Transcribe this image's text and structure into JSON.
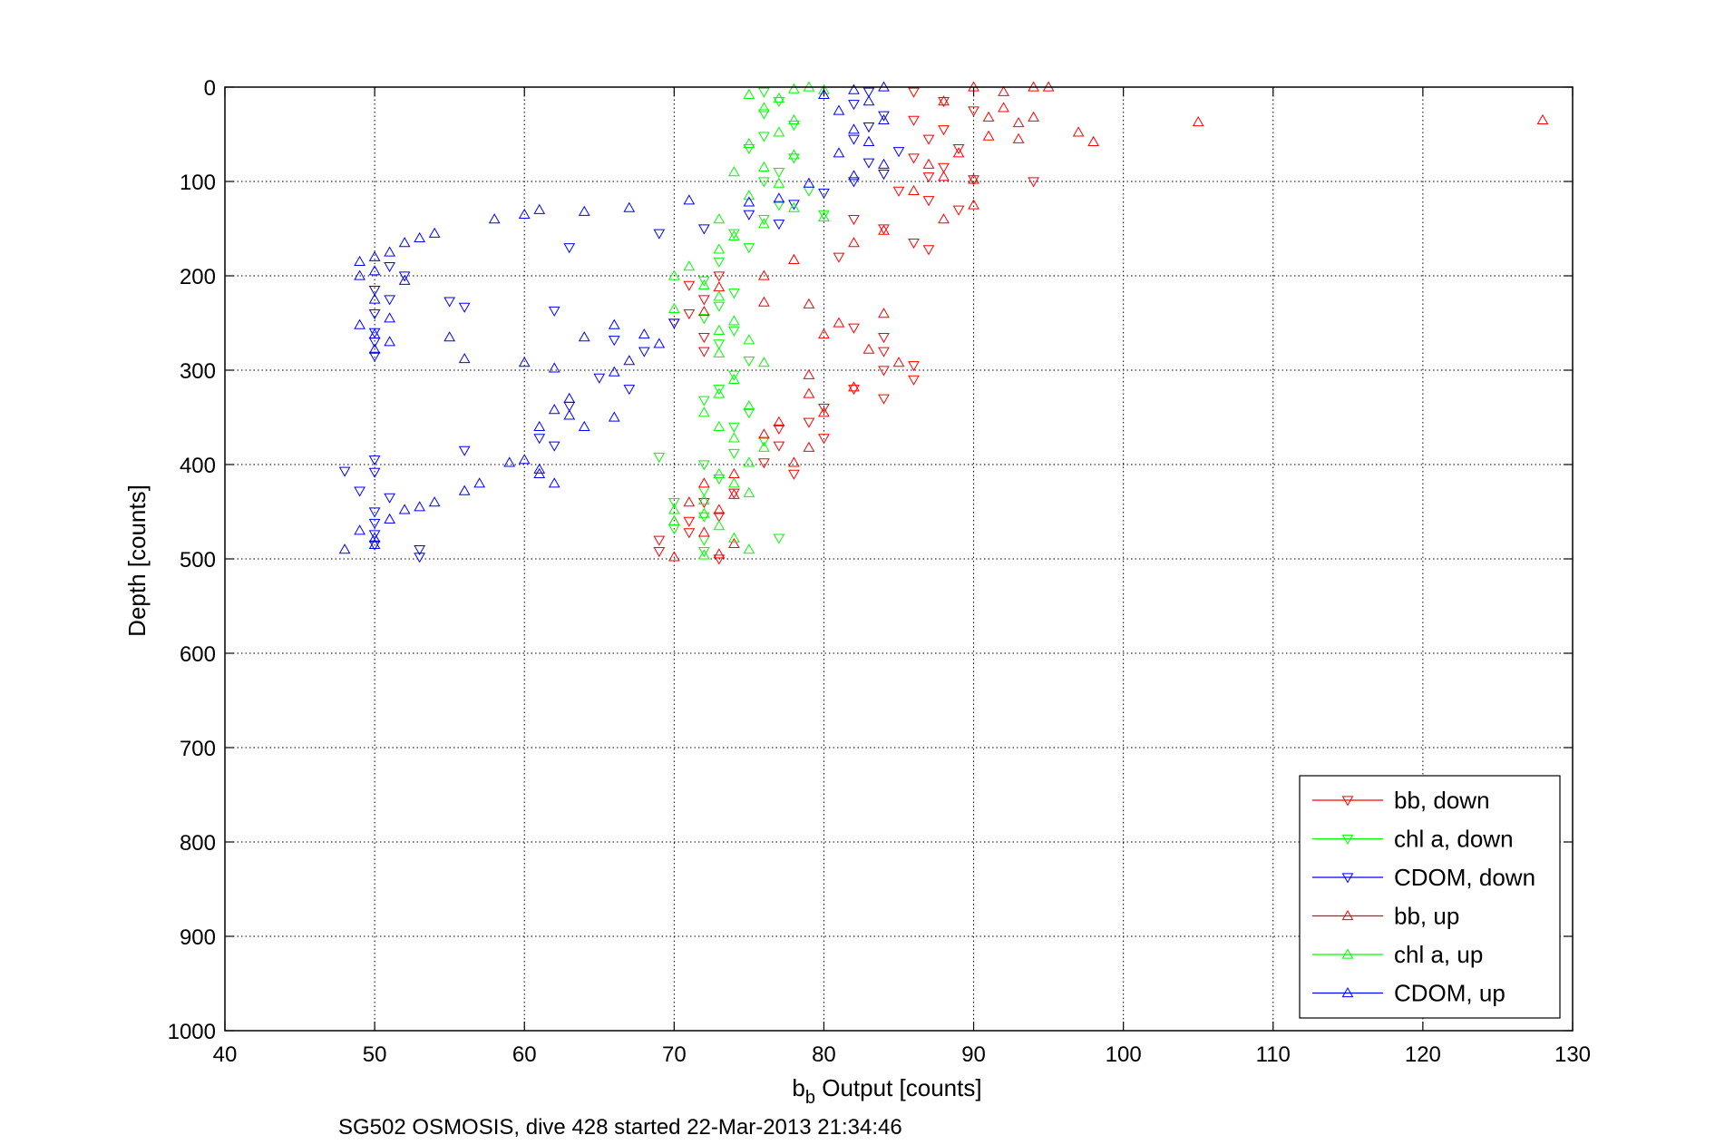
{
  "chart_data": {
    "type": "scatter",
    "xlabel_main": "b",
    "xlabel_sub": "b",
    "xlabel_rest": " Output [counts]",
    "ylabel": "Depth [counts]",
    "caption": "SG502 OSMOSIS, dive 428 started 22-Mar-2013 21:34:46",
    "xlim": [
      40,
      130
    ],
    "ylim": [
      0,
      1000
    ],
    "y_reversed": true,
    "grid": true,
    "legend_position": "bottom-right",
    "x_ticks": [
      "40",
      "50",
      "60",
      "70",
      "80",
      "90",
      "100",
      "110",
      "120",
      "130"
    ],
    "y_ticks": [
      "0",
      "100",
      "200",
      "300",
      "400",
      "500",
      "600",
      "700",
      "800",
      "900",
      "1000"
    ],
    "series": [
      {
        "name": "bb, down",
        "color": "#ff0000",
        "marker": "triangle-down",
        "points": [
          [
            86,
            5
          ],
          [
            88,
            15
          ],
          [
            90,
            25
          ],
          [
            86,
            35
          ],
          [
            88,
            45
          ],
          [
            87,
            55
          ],
          [
            89,
            65
          ],
          [
            86,
            75
          ],
          [
            88,
            85
          ],
          [
            87,
            95
          ],
          [
            90,
            98
          ],
          [
            94,
            100
          ],
          [
            85,
            110
          ],
          [
            87,
            120
          ],
          [
            89,
            130
          ],
          [
            82,
            140
          ],
          [
            84,
            150
          ],
          [
            86,
            165
          ],
          [
            87,
            172
          ],
          [
            81,
            180
          ],
          [
            73,
            200
          ],
          [
            71,
            210
          ],
          [
            72,
            225
          ],
          [
            71,
            240
          ],
          [
            70,
            250
          ],
          [
            72,
            265
          ],
          [
            72,
            280
          ],
          [
            82,
            255
          ],
          [
            84,
            265
          ],
          [
            84,
            280
          ],
          [
            86,
            295
          ],
          [
            84,
            300
          ],
          [
            86,
            310
          ],
          [
            82,
            320
          ],
          [
            84,
            330
          ],
          [
            80,
            340
          ],
          [
            79,
            355
          ],
          [
            77,
            362
          ],
          [
            80,
            372
          ],
          [
            77,
            380
          ],
          [
            76,
            398
          ],
          [
            78,
            410
          ],
          [
            74,
            430
          ],
          [
            72,
            440
          ],
          [
            73,
            455
          ],
          [
            71,
            460
          ],
          [
            71,
            472
          ],
          [
            69,
            480
          ],
          [
            69,
            492
          ],
          [
            73,
            500
          ]
        ]
      },
      {
        "name": "chl a, down",
        "color": "#00ff00",
        "marker": "triangle-down",
        "points": [
          [
            76,
            5
          ],
          [
            77,
            15
          ],
          [
            76,
            28
          ],
          [
            78,
            40
          ],
          [
            76,
            52
          ],
          [
            75,
            65
          ],
          [
            78,
            75
          ],
          [
            77,
            90
          ],
          [
            76,
            100
          ],
          [
            79,
            110
          ],
          [
            77,
            125
          ],
          [
            80,
            135
          ],
          [
            76,
            140
          ],
          [
            74,
            155
          ],
          [
            75,
            170
          ],
          [
            73,
            185
          ],
          [
            72,
            205
          ],
          [
            74,
            218
          ],
          [
            73,
            232
          ],
          [
            72,
            245
          ],
          [
            74,
            258
          ],
          [
            73,
            272
          ],
          [
            75,
            290
          ],
          [
            74,
            305
          ],
          [
            73,
            320
          ],
          [
            72,
            332
          ],
          [
            75,
            345
          ],
          [
            74,
            360
          ],
          [
            76,
            375
          ],
          [
            74,
            388
          ],
          [
            72,
            400
          ],
          [
            69,
            392
          ],
          [
            73,
            415
          ],
          [
            72,
            428
          ],
          [
            70,
            440
          ],
          [
            72,
            455
          ],
          [
            70,
            468
          ],
          [
            72,
            480
          ],
          [
            72,
            492
          ],
          [
            77,
            478
          ]
        ]
      },
      {
        "name": "CDOM, down",
        "color": "#0000ff",
        "marker": "triangle-down",
        "points": [
          [
            83,
            5
          ],
          [
            82,
            18
          ],
          [
            84,
            30
          ],
          [
            83,
            42
          ],
          [
            82,
            55
          ],
          [
            85,
            68
          ],
          [
            83,
            80
          ],
          [
            84,
            92
          ],
          [
            82,
            100
          ],
          [
            80,
            112
          ],
          [
            78,
            124
          ],
          [
            75,
            135
          ],
          [
            77,
            145
          ],
          [
            72,
            150
          ],
          [
            69,
            155
          ],
          [
            63,
            170
          ],
          [
            62,
            237
          ],
          [
            55,
            227
          ],
          [
            56,
            233
          ],
          [
            51,
            190
          ],
          [
            52,
            200
          ],
          [
            50,
            215
          ],
          [
            51,
            225
          ],
          [
            50,
            240
          ],
          [
            50,
            260
          ],
          [
            50,
            270
          ],
          [
            50,
            285
          ],
          [
            68,
            280
          ],
          [
            66,
            268
          ],
          [
            70,
            250
          ],
          [
            65,
            308
          ],
          [
            67,
            320
          ],
          [
            63,
            338
          ],
          [
            61,
            372
          ],
          [
            62,
            380
          ],
          [
            56,
            385
          ],
          [
            50,
            395
          ],
          [
            50,
            408
          ],
          [
            48,
            407
          ],
          [
            49,
            428
          ],
          [
            51,
            435
          ],
          [
            50,
            450
          ],
          [
            50,
            462
          ],
          [
            50,
            474
          ],
          [
            50,
            485
          ],
          [
            53,
            490
          ],
          [
            53,
            498
          ]
        ]
      },
      {
        "name": "bb, up",
        "color": "#ff0000",
        "marker": "triangle-up",
        "points": [
          [
            90,
            0
          ],
          [
            94,
            0
          ],
          [
            95,
            0
          ],
          [
            92,
            5
          ],
          [
            88,
            15
          ],
          [
            92,
            22
          ],
          [
            91,
            32
          ],
          [
            93,
            38
          ],
          [
            94,
            32
          ],
          [
            105,
            37
          ],
          [
            128,
            35
          ],
          [
            97,
            48
          ],
          [
            98,
            58
          ],
          [
            93,
            55
          ],
          [
            91,
            52
          ],
          [
            89,
            70
          ],
          [
            87,
            82
          ],
          [
            88,
            95
          ],
          [
            90,
            98
          ],
          [
            86,
            110
          ],
          [
            90,
            125
          ],
          [
            88,
            140
          ],
          [
            84,
            152
          ],
          [
            82,
            165
          ],
          [
            78,
            183
          ],
          [
            76,
            200
          ],
          [
            73,
            212
          ],
          [
            76,
            228
          ],
          [
            72,
            238
          ],
          [
            79,
            230
          ],
          [
            81,
            250
          ],
          [
            80,
            262
          ],
          [
            84,
            240
          ],
          [
            83,
            278
          ],
          [
            85,
            292
          ],
          [
            79,
            305
          ],
          [
            82,
            318
          ],
          [
            79,
            325
          ],
          [
            80,
            345
          ],
          [
            77,
            355
          ],
          [
            76,
            368
          ],
          [
            79,
            382
          ],
          [
            78,
            398
          ],
          [
            74,
            410
          ],
          [
            72,
            420
          ],
          [
            74,
            432
          ],
          [
            71,
            440
          ],
          [
            73,
            448
          ],
          [
            70,
            460
          ],
          [
            72,
            472
          ],
          [
            74,
            484
          ],
          [
            73,
            495
          ],
          [
            70,
            498
          ]
        ]
      },
      {
        "name": "chl a, up",
        "color": "#00ff00",
        "marker": "triangle-up",
        "points": [
          [
            79,
            0
          ],
          [
            78,
            2
          ],
          [
            80,
            3
          ],
          [
            75,
            8
          ],
          [
            77,
            12
          ],
          [
            76,
            22
          ],
          [
            78,
            35
          ],
          [
            77,
            48
          ],
          [
            75,
            60
          ],
          [
            78,
            72
          ],
          [
            76,
            85
          ],
          [
            74,
            90
          ],
          [
            77,
            102
          ],
          [
            75,
            115
          ],
          [
            78,
            128
          ],
          [
            80,
            138
          ],
          [
            76,
            145
          ],
          [
            73,
            140
          ],
          [
            74,
            158
          ],
          [
            73,
            172
          ],
          [
            71,
            190
          ],
          [
            70,
            200
          ],
          [
            72,
            210
          ],
          [
            73,
            222
          ],
          [
            70,
            235
          ],
          [
            74,
            248
          ],
          [
            73,
            258
          ],
          [
            75,
            268
          ],
          [
            73,
            282
          ],
          [
            76,
            292
          ],
          [
            74,
            310
          ],
          [
            73,
            325
          ],
          [
            75,
            338
          ],
          [
            72,
            345
          ],
          [
            73,
            360
          ],
          [
            74,
            372
          ],
          [
            76,
            382
          ],
          [
            75,
            398
          ],
          [
            73,
            410
          ],
          [
            74,
            420
          ],
          [
            75,
            430
          ],
          [
            72,
            438
          ],
          [
            70,
            448
          ],
          [
            72,
            452
          ],
          [
            73,
            465
          ],
          [
            74,
            478
          ],
          [
            75,
            490
          ],
          [
            72,
            496
          ],
          [
            70,
            460
          ]
        ]
      },
      {
        "name": "CDOM, up",
        "color": "#0000ff",
        "marker": "triangle-up",
        "points": [
          [
            84,
            0
          ],
          [
            82,
            3
          ],
          [
            80,
            8
          ],
          [
            83,
            15
          ],
          [
            81,
            25
          ],
          [
            84,
            35
          ],
          [
            82,
            45
          ],
          [
            83,
            58
          ],
          [
            81,
            70
          ],
          [
            84,
            82
          ],
          [
            82,
            94
          ],
          [
            79,
            102
          ],
          [
            77,
            118
          ],
          [
            75,
            122
          ],
          [
            71,
            120
          ],
          [
            67,
            128
          ],
          [
            64,
            132
          ],
          [
            61,
            130
          ],
          [
            60,
            135
          ],
          [
            58,
            140
          ],
          [
            54,
            155
          ],
          [
            53,
            160
          ],
          [
            52,
            165
          ],
          [
            51,
            175
          ],
          [
            50,
            180
          ],
          [
            49,
            185
          ],
          [
            50,
            195
          ],
          [
            49,
            200
          ],
          [
            52,
            205
          ],
          [
            50,
            225
          ],
          [
            51,
            245
          ],
          [
            50,
            262
          ],
          [
            49,
            252
          ],
          [
            51,
            270
          ],
          [
            50,
            278
          ],
          [
            55,
            265
          ],
          [
            56,
            288
          ],
          [
            60,
            292
          ],
          [
            62,
            298
          ],
          [
            66,
            302
          ],
          [
            67,
            290
          ],
          [
            69,
            272
          ],
          [
            68,
            262
          ],
          [
            66,
            252
          ],
          [
            64,
            265
          ],
          [
            63,
            330
          ],
          [
            62,
            342
          ],
          [
            63,
            348
          ],
          [
            64,
            360
          ],
          [
            66,
            350
          ],
          [
            61,
            360
          ],
          [
            60,
            395
          ],
          [
            59,
            398
          ],
          [
            61,
            405
          ],
          [
            61,
            410
          ],
          [
            62,
            420
          ],
          [
            57,
            420
          ],
          [
            56,
            428
          ],
          [
            54,
            440
          ],
          [
            53,
            445
          ],
          [
            52,
            448
          ],
          [
            51,
            458
          ],
          [
            49,
            470
          ],
          [
            50,
            478
          ],
          [
            50,
            485
          ],
          [
            48,
            490
          ]
        ]
      }
    ]
  }
}
